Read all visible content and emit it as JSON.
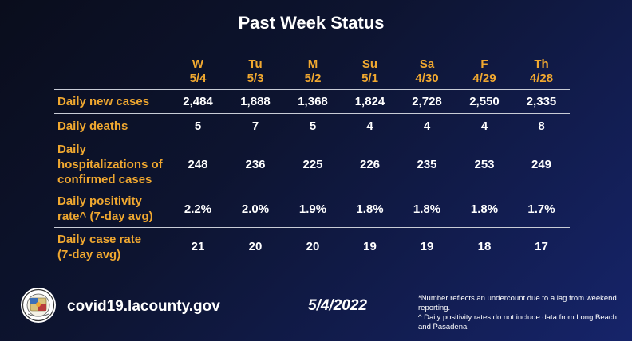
{
  "title": "Past Week Status",
  "columns": [
    {
      "day": "W",
      "date": "5/4"
    },
    {
      "day": "Tu",
      "date": "5/3"
    },
    {
      "day": "M",
      "date": "5/2"
    },
    {
      "day": "Su",
      "date": "5/1"
    },
    {
      "day": "Sa",
      "date": "4/30"
    },
    {
      "day": "F",
      "date": "4/29"
    },
    {
      "day": "Th",
      "date": "4/28"
    }
  ],
  "rows": [
    {
      "label": [
        "Daily new cases"
      ],
      "values": [
        "2,484",
        "1,888",
        "1,368",
        "1,824",
        "2,728",
        "2,550",
        "2,335"
      ]
    },
    {
      "label": [
        "Daily deaths"
      ],
      "values": [
        "5",
        "7",
        "5",
        "4",
        "4",
        "4",
        "8"
      ]
    },
    {
      "label": [
        "Daily",
        "hospitalizations of",
        "confirmed cases"
      ],
      "values": [
        "248",
        "236",
        "225",
        "226",
        "235",
        "253",
        "249"
      ]
    },
    {
      "label": [
        "Daily positivity",
        "rate^ (7-day avg)"
      ],
      "values": [
        "2.2%",
        "2.0%",
        "1.9%",
        "1.8%",
        "1.8%",
        "1.8%",
        "1.7%"
      ]
    },
    {
      "label": [
        "Daily case rate",
        "(7-day avg)"
      ],
      "values": [
        "21",
        "20",
        "20",
        "19",
        "19",
        "18",
        "17"
      ]
    }
  ],
  "footer": {
    "url": "covid19.lacounty.gov",
    "date": "5/4/2022",
    "footnote_1": "*Number reflects an undercount due to a lag from weekend reporting.",
    "footnote_2": "^ Daily positivity rates do not include data from Long Beach and Pasadena",
    "seal_icon": "county-seal-icon"
  },
  "colors": {
    "accent": "#f0a830",
    "text": "#ffffff",
    "background_dark": "#0a0d1c",
    "background_light": "#16246a"
  }
}
